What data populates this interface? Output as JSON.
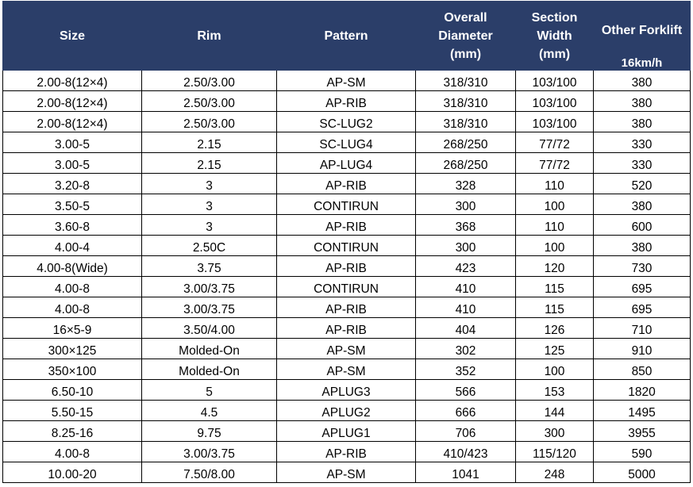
{
  "headers": {
    "size": "Size",
    "rim": "Rim",
    "pattern": "Pattern",
    "overall_diameter": [
      "Overall",
      "Diameter",
      "(mm)"
    ],
    "section_width": [
      "Section",
      "Width",
      "(mm)"
    ],
    "other_forklift": "Other Forklift",
    "speed": "16km/h"
  },
  "rows": [
    [
      "2.00-8(12×4)",
      "2.50/3.00",
      "AP-SM",
      "318/310",
      "103/100",
      "380"
    ],
    [
      "2.00-8(12×4)",
      "2.50/3.00",
      "AP-RIB",
      "318/310",
      "103/100",
      "380"
    ],
    [
      "2.00-8(12×4)",
      "2.50/3.00",
      "SC-LUG2",
      "318/310",
      "103/100",
      "380"
    ],
    [
      "3.00-5",
      "2.15",
      "SC-LUG4",
      "268/250",
      "77/72",
      "330"
    ],
    [
      "3.00-5",
      "2.15",
      "AP-LUG4",
      "268/250",
      "77/72",
      "330"
    ],
    [
      "3.20-8",
      "3",
      "AP-RIB",
      "328",
      "110",
      "520"
    ],
    [
      "3.50-5",
      "3",
      "CONTIRUN",
      "300",
      "100",
      "380"
    ],
    [
      "3.60-8",
      "3",
      "AP-RIB",
      "368",
      "110",
      "600"
    ],
    [
      "4.00-4",
      "2.50C",
      "CONTIRUN",
      "300",
      "100",
      "380"
    ],
    [
      "4.00-8(Wide)",
      "3.75",
      "AP-RIB",
      "423",
      "120",
      "730"
    ],
    [
      "4.00-8",
      "3.00/3.75",
      "CONTIRUN",
      "410",
      "115",
      "695"
    ],
    [
      "4.00-8",
      "3.00/3.75",
      "AP-RIB",
      "410",
      "115",
      "695"
    ],
    [
      "16×5-9",
      "3.50/4.00",
      "AP-RIB",
      "404",
      "126",
      "710"
    ],
    [
      "300×125",
      "Molded-On",
      "AP-SM",
      "302",
      "125",
      "910"
    ],
    [
      "350×100",
      "Molded-On",
      "AP-SM",
      "352",
      "100",
      "850"
    ],
    [
      "6.50-10",
      "5",
      "APLUG3",
      "566",
      "153",
      "1820"
    ],
    [
      "5.50-15",
      "4.5",
      "APLUG2",
      "666",
      "144",
      "1495"
    ],
    [
      "8.25-16",
      "9.75",
      "APLUG1",
      "706",
      "300",
      "3955"
    ],
    [
      "4.00-8",
      "3.00/3.75",
      "AP-RIB",
      "410/423",
      "115/120",
      "590"
    ],
    [
      "10.00-20",
      "7.50/8.00",
      "AP-SM",
      "1041",
      "248",
      "5000"
    ]
  ]
}
